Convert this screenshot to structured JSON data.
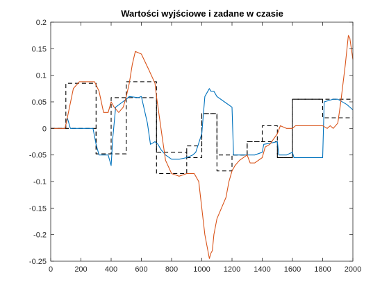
{
  "chart_data": {
    "type": "line",
    "title": "Wartości wyjściowe i zadane w czasie",
    "xlabel": "",
    "ylabel": "",
    "xlim": [
      0,
      2000
    ],
    "ylim": [
      -0.25,
      0.2
    ],
    "xticks": [
      0,
      200,
      400,
      600,
      800,
      1000,
      1200,
      1400,
      1600,
      1800,
      2000
    ],
    "yticks": [
      -0.25,
      -0.2,
      -0.15,
      -0.1,
      -0.05,
      0,
      0.05,
      0.1,
      0.15,
      0.2
    ],
    "ytick_labels": [
      "-0.25",
      "-0.2",
      "-0.15",
      "-0.1",
      "-0.05",
      "0",
      "0.05",
      "0.1",
      "0.15",
      "0.2"
    ],
    "grid": false,
    "colors": {
      "blue": "#0072bd",
      "orange": "#d95319",
      "setpoint": "#000000",
      "axes": "#262626"
    },
    "series": [
      {
        "color": "#000000",
        "style": "dashed",
        "x": [
          0,
          100,
          100,
          300,
          300,
          400,
          400,
          500,
          500,
          700,
          700,
          900,
          900,
          1000,
          1000,
          1100,
          1100,
          1200,
          1200,
          1300,
          1300,
          1400,
          1400,
          1500,
          1500,
          1600,
          1600,
          1800,
          1800,
          2000
        ],
        "values": [
          0.0,
          0.0,
          0.085,
          0.085,
          -0.048,
          -0.048,
          -0.048,
          -0.048,
          0.088,
          0.088,
          -0.085,
          -0.085,
          -0.033,
          -0.033,
          0.028,
          0.028,
          -0.08,
          -0.08,
          -0.05,
          -0.05,
          -0.025,
          -0.025,
          0.005,
          0.005,
          -0.055,
          -0.055,
          0.055,
          0.055,
          0.02,
          0.02
        ]
      },
      {
        "color": "#000000",
        "style": "dashed",
        "x": [
          0,
          100,
          100,
          300,
          300,
          400,
          400,
          500,
          500,
          700,
          700,
          900,
          900,
          1000,
          1000,
          1100,
          1100,
          1200,
          1200,
          1300,
          1300,
          1400,
          1400,
          1500,
          1500,
          1600,
          1600,
          1800,
          1800,
          2000
        ],
        "values": [
          0.0,
          0.0,
          0.0,
          0.0,
          -0.048,
          -0.048,
          0.058,
          0.058,
          0.058,
          0.058,
          -0.045,
          -0.045,
          -0.055,
          -0.055,
          0.028,
          0.028,
          -0.05,
          -0.05,
          -0.05,
          -0.05,
          -0.025,
          -0.025,
          -0.025,
          -0.025,
          -0.055,
          -0.055,
          0.055,
          0.055,
          0.055,
          0.055
        ]
      },
      {
        "color": "#0072bd",
        "style": "solid",
        "x": [
          0,
          95,
          110,
          130,
          190,
          280,
          300,
          320,
          380,
          400,
          410,
          430,
          500,
          520,
          580,
          600,
          640,
          660,
          690,
          710,
          730,
          760,
          800,
          850,
          900,
          940,
          960,
          1000,
          1020,
          1050,
          1060,
          1080,
          1100,
          1150,
          1200,
          1210,
          1240,
          1300,
          1350,
          1400,
          1410,
          1450,
          1500,
          1510,
          1560,
          1600,
          1610,
          1700,
          1800,
          1810,
          1870,
          1900,
          1960,
          2000
        ],
        "values": [
          0.0,
          0.0,
          0.02,
          0.0,
          0.0,
          0.0,
          -0.03,
          -0.05,
          -0.05,
          -0.07,
          -0.02,
          0.04,
          0.055,
          0.06,
          0.058,
          0.06,
          0.01,
          -0.03,
          -0.025,
          -0.03,
          -0.04,
          -0.05,
          -0.058,
          -0.058,
          -0.055,
          -0.05,
          -0.045,
          -0.01,
          0.06,
          0.075,
          0.07,
          0.07,
          0.06,
          0.05,
          0.04,
          -0.05,
          -0.05,
          -0.05,
          -0.05,
          -0.045,
          -0.03,
          -0.028,
          -0.025,
          -0.05,
          -0.05,
          -0.045,
          -0.055,
          -0.055,
          -0.055,
          0.05,
          0.055,
          0.055,
          0.045,
          0.035
        ]
      },
      {
        "color": "#d95319",
        "style": "solid",
        "x": [
          0,
          95,
          110,
          150,
          190,
          290,
          320,
          350,
          380,
          400,
          420,
          450,
          480,
          500,
          520,
          540,
          560,
          600,
          650,
          690,
          700,
          720,
          740,
          760,
          800,
          850,
          900,
          950,
          980,
          1000,
          1020,
          1050,
          1060,
          1070,
          1080,
          1100,
          1130,
          1160,
          1180,
          1200,
          1220,
          1250,
          1300,
          1320,
          1350,
          1400,
          1420,
          1450,
          1500,
          1520,
          1560,
          1600,
          1620,
          1700,
          1800,
          1830,
          1850,
          1870,
          1900,
          1920,
          1950,
          1970,
          1980,
          2000
        ],
        "values": [
          0.0,
          0.0,
          0.02,
          0.075,
          0.088,
          0.088,
          0.07,
          0.03,
          0.03,
          0.05,
          0.04,
          0.03,
          0.04,
          0.06,
          0.085,
          0.12,
          0.145,
          0.14,
          0.11,
          0.085,
          0.06,
          0.02,
          -0.02,
          -0.06,
          -0.085,
          -0.09,
          -0.085,
          -0.085,
          -0.1,
          -0.15,
          -0.2,
          -0.245,
          -0.235,
          -0.23,
          -0.2,
          -0.17,
          -0.15,
          -0.13,
          -0.1,
          -0.08,
          -0.07,
          -0.06,
          -0.05,
          -0.065,
          -0.065,
          -0.055,
          -0.035,
          -0.03,
          -0.01,
          0.005,
          0.0,
          0.0,
          0.005,
          0.005,
          0.005,
          0.0,
          0.005,
          0.0,
          0.01,
          0.05,
          0.12,
          0.175,
          0.17,
          0.13
        ]
      }
    ]
  }
}
